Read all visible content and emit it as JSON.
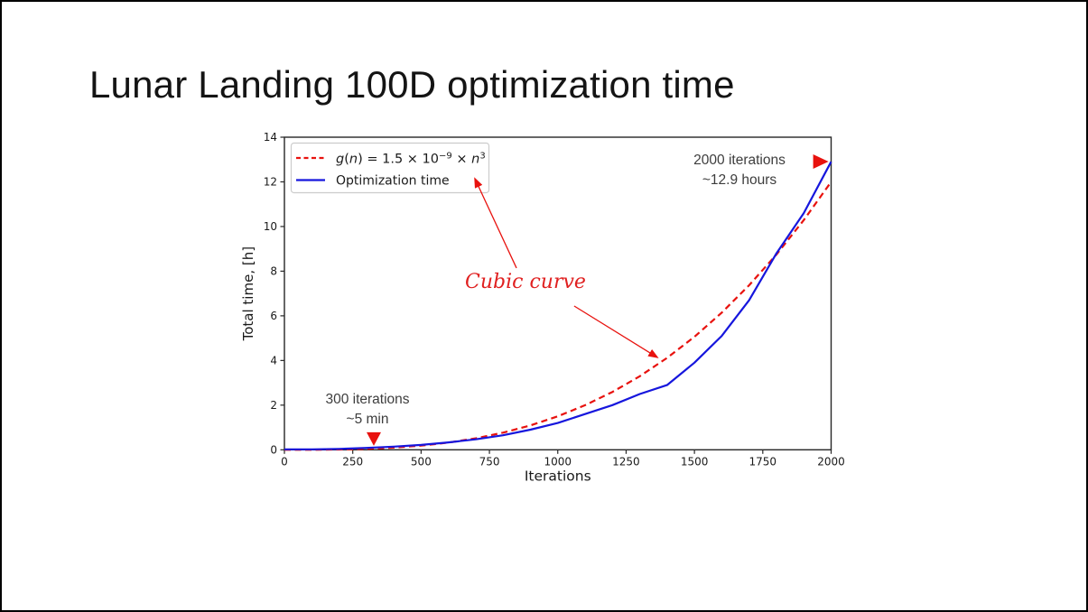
{
  "slide": {
    "title": "Lunar Landing 100D optimization time"
  },
  "chart_data": {
    "type": "line",
    "title": "",
    "xlabel": "Iterations",
    "ylabel": "Total time, [h]",
    "xlim": [
      0,
      2000
    ],
    "ylim": [
      0,
      14
    ],
    "xticks": [
      "0",
      "250",
      "500",
      "750",
      "1000",
      "1250",
      "1500",
      "1750",
      "2000"
    ],
    "yticks": [
      "0",
      "2",
      "4",
      "6",
      "8",
      "10",
      "12",
      "14"
    ],
    "grid": false,
    "legend_position": "upper left",
    "x": [
      0,
      100,
      200,
      300,
      400,
      500,
      600,
      700,
      800,
      900,
      1000,
      1100,
      1200,
      1300,
      1400,
      1500,
      1600,
      1700,
      1800,
      1900,
      2000
    ],
    "series": [
      {
        "name": "g(n) = 1.5 × 10⁻⁹ × n³",
        "color": "#e8120e",
        "line_style": "dashed",
        "values": [
          0,
          0.0015,
          0.012,
          0.0405,
          0.096,
          0.1875,
          0.324,
          0.5145,
          0.768,
          1.0935,
          1.5,
          1.9965,
          2.592,
          3.2955,
          4.116,
          5.0625,
          6.144,
          7.3695,
          8.748,
          10.2885,
          12.0
        ]
      },
      {
        "name": "Optimization time",
        "color": "#1616dd",
        "line_style": "solid",
        "values": [
          0.02,
          0.02,
          0.04,
          0.083,
          0.14,
          0.22,
          0.33,
          0.47,
          0.65,
          0.9,
          1.2,
          1.6,
          2.0,
          2.5,
          2.9,
          3.9,
          5.1,
          6.7,
          8.8,
          10.6,
          12.9
        ]
      }
    ],
    "legend_formula_segments": [
      {
        "t": "g",
        "italic": true
      },
      {
        "t": "("
      },
      {
        "t": "n",
        "italic": true
      },
      {
        "t": ") = 1.5 × 10"
      },
      {
        "t": "−9",
        "sup": true
      },
      {
        "t": " × "
      },
      {
        "t": "n",
        "italic": true
      },
      {
        "t": "3",
        "sup": true
      }
    ],
    "annotations": {
      "left_marker": {
        "lines": [
          "300 iterations",
          "~5 min"
        ],
        "marker": "triangle-down",
        "marker_at": {
          "x": 327,
          "y": 0.48
        }
      },
      "right_marker": {
        "lines": [
          "2000 iterations",
          "~12.9 hours"
        ],
        "marker": "triangle-right",
        "marker_at": {
          "x": 1959,
          "y": 12.91
        }
      },
      "curve_label": {
        "text": "Cubic curve",
        "color": "#e02020"
      },
      "arrows": [
        {
          "from": {
            "x": 849,
            "y": 8.14
          },
          "to": {
            "x": 697,
            "y": 12.14
          }
        },
        {
          "from": {
            "x": 1060,
            "y": 6.44
          },
          "to": {
            "x": 1364,
            "y": 4.14
          }
        }
      ]
    },
    "colors": {
      "axis": "#262626",
      "tick_text": "#1a1a1a",
      "annotation_text": "#3d3d3d",
      "legend_border": "#cccccc",
      "arrow": "#e8120e"
    }
  }
}
